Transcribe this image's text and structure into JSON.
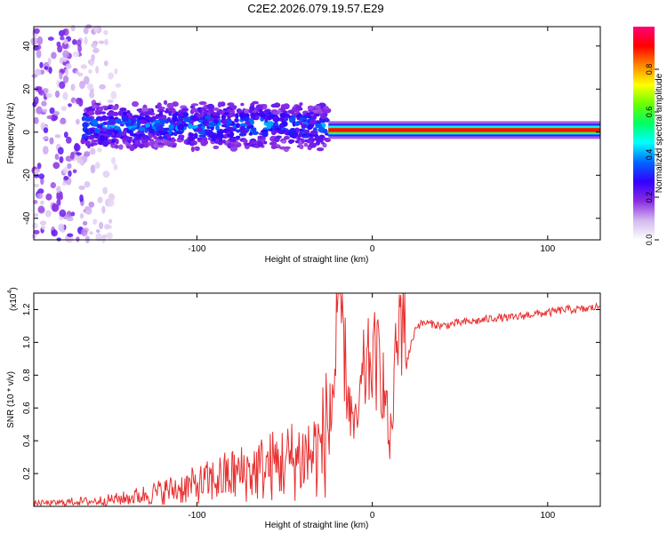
{
  "title": "C2E2.2026.079.19.57.E29",
  "chart_data": [
    {
      "type": "heatmap",
      "name": "spectrogram",
      "xlabel": "Height of straight line (km)",
      "ylabel": "Frequency (Hz)",
      "xlim": [
        -193,
        130
      ],
      "ylim": [
        -50,
        49
      ],
      "xticks": [
        -100,
        0,
        100
      ],
      "xtick_labels": [
        "-100",
        "0",
        "100"
      ],
      "yticks": [
        -40,
        -20,
        0,
        20,
        40
      ],
      "ytick_labels": [
        "-40",
        "-20",
        "0",
        "20",
        "40"
      ],
      "colorbar": {
        "label": "Normalized spectral amplitude",
        "range": [
          0,
          1
        ],
        "ticks": [
          0.0,
          0.2,
          0.4,
          0.6,
          0.8
        ],
        "tick_labels": [
          "0.0",
          "0.2",
          "0.4",
          "0.6",
          "0.8"
        ],
        "colors": [
          "#ffffff",
          "#d4b8f0",
          "#8a2be2",
          "#3300ff",
          "#0066ff",
          "#00ffff",
          "#00ff66",
          "#66ff00",
          "#ffff00",
          "#ff8800",
          "#ff0000",
          "#ff0077"
        ]
      },
      "features": [
        {
          "x_range": [
            -193,
            -165
          ],
          "freq_center": 0,
          "freq_halfwidth": 50,
          "amplitude": 0.15
        },
        {
          "x_range": [
            -165,
            -25
          ],
          "freq_center": 3,
          "freq_halfwidth": 7,
          "amplitude": 0.35
        },
        {
          "x_range": [
            -25,
            130
          ],
          "freq_center": 1,
          "freq_halfwidth": 1.5,
          "amplitude": 0.9
        }
      ]
    },
    {
      "type": "line",
      "name": "snr",
      "color": "#e83030",
      "xlabel": "Height of straight line (km)",
      "ylabel": "SNR (10 * v/v)",
      "scale_label": "(x10",
      "scale_exponent": "4",
      "xlim": [
        -193,
        130
      ],
      "ylim": [
        0,
        1.3
      ],
      "xticks": [
        -100,
        0,
        100
      ],
      "xtick_labels": [
        "-100",
        "0",
        "100"
      ],
      "yticks": [
        0.2,
        0.4,
        0.6,
        0.8,
        1.0,
        1.2
      ],
      "ytick_labels": [
        "0.2",
        "0.4",
        "0.6",
        "0.8",
        "1.0",
        "1.2"
      ],
      "series": [
        {
          "name": "SNR",
          "x": [
            -193,
            -180,
            -170,
            -160,
            -150,
            -140,
            -130,
            -120,
            -110,
            -100,
            -90,
            -80,
            -70,
            -60,
            -50,
            -40,
            -30,
            -25,
            -20,
            -18,
            -15,
            -12,
            -10,
            -8,
            -5,
            0,
            5,
            8,
            10,
            12,
            15,
            18,
            20,
            25,
            30,
            40,
            50,
            60,
            70,
            80,
            90,
            100,
            110,
            120,
            130
          ],
          "y": [
            0.02,
            0.02,
            0.03,
            0.03,
            0.04,
            0.05,
            0.07,
            0.09,
            0.11,
            0.13,
            0.16,
            0.19,
            0.21,
            0.24,
            0.27,
            0.3,
            0.34,
            0.5,
            0.95,
            1.27,
            0.8,
            0.55,
            0.45,
            0.55,
            0.8,
            0.9,
            0.85,
            0.6,
            0.33,
            0.7,
            1.05,
            1.27,
            0.9,
            1.1,
            1.12,
            1.1,
            1.12,
            1.13,
            1.15,
            1.15,
            1.17,
            1.18,
            1.2,
            1.2,
            1.22
          ]
        }
      ]
    }
  ]
}
